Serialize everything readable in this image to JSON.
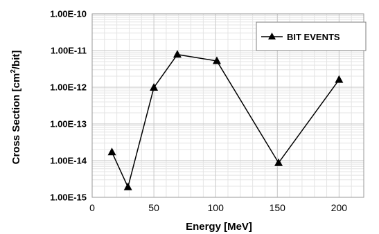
{
  "chart_data": {
    "type": "scatter",
    "xlabel": "Energy [MeV]",
    "ylabel": {
      "prefix": "Cross Section [cm",
      "sup": "2",
      "suffix": "/bit]"
    },
    "xlim": [
      0,
      220
    ],
    "ylim": [
      1e-15,
      1e-10
    ],
    "y_scale": "log",
    "x_ticks": [
      "0",
      "50",
      "100",
      "150",
      "200"
    ],
    "y_ticks": [
      "1.00E-15",
      "1.00E-14",
      "1.00E-13",
      "1.00E-12",
      "1.00E-11",
      "1.00E-10"
    ],
    "grid": true,
    "legend_position": "top-right",
    "series": [
      {
        "name": "BIT EVENTS",
        "color": "#000000",
        "marker": "triangle",
        "x": [
          16,
          29,
          50,
          69,
          101,
          151,
          200
        ],
        "y": [
          1.7e-14,
          1.9e-15,
          9.8e-13,
          7.8e-12,
          5.2e-12,
          8.7e-15,
          1.6e-12
        ]
      }
    ]
  }
}
